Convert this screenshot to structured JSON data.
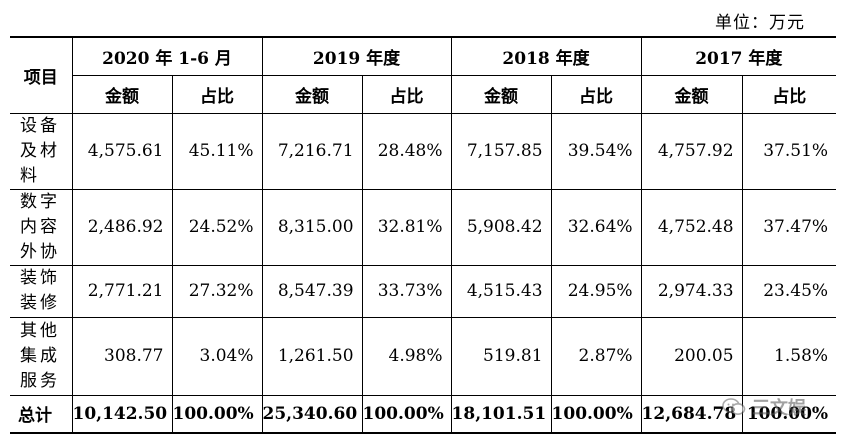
{
  "unit": "单位：万元",
  "header": {
    "item": "项目",
    "periods": [
      "2020 年 1-6 月",
      "2019 年度",
      "2018 年度",
      "2017 年度"
    ],
    "amount": "金额",
    "ratio": "占比"
  },
  "rows": [
    {
      "lines": [
        "设备",
        "及材",
        "料"
      ],
      "cells": [
        "4,575.61",
        "45.11%",
        "7,216.71",
        "28.48%",
        "7,157.85",
        "39.54%",
        "4,757.92",
        "37.51%"
      ]
    },
    {
      "lines": [
        "数字",
        "内容",
        "外协"
      ],
      "cells": [
        "2,486.92",
        "24.52%",
        "8,315.00",
        "32.81%",
        "5,908.42",
        "32.64%",
        "4,752.48",
        "37.47%"
      ]
    },
    {
      "lines": [
        "装饰",
        "装修"
      ],
      "cells": [
        "2,771.21",
        "27.32%",
        "8,547.39",
        "33.73%",
        "4,515.43",
        "24.95%",
        "2,974.33",
        "23.45%"
      ]
    },
    {
      "lines": [
        "其他",
        "集成",
        "服务"
      ],
      "cells": [
        "308.77",
        "3.04%",
        "1,261.50",
        "4.98%",
        "519.81",
        "2.87%",
        "200.05",
        "1.58%"
      ]
    }
  ],
  "total": {
    "label": "总计",
    "cells": [
      "10,142.50",
      "100.00%",
      "25,340.60",
      "100.00%",
      "18,101.51",
      "100.00%",
      "12,684.78",
      "100.00%"
    ]
  },
  "watermark": {
    "text": "三文娱",
    "icon": "wechat-logo-icon"
  }
}
